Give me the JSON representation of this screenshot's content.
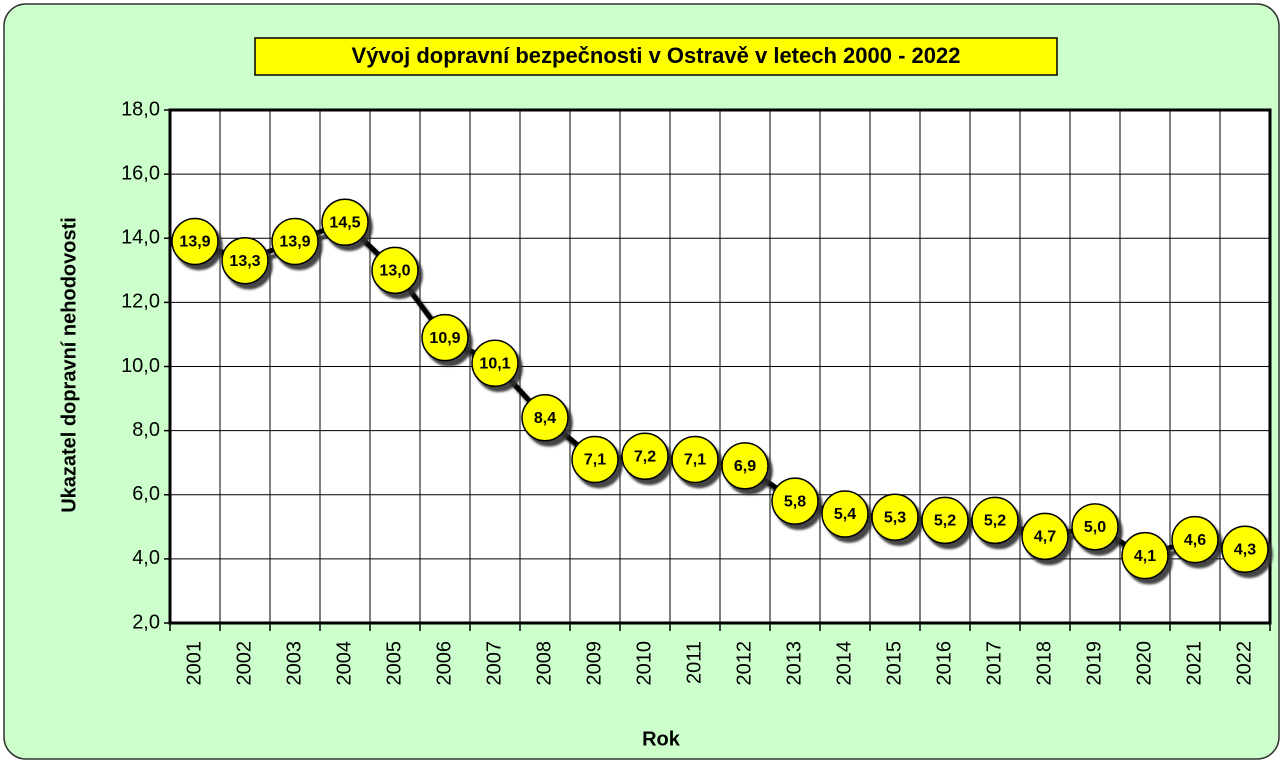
{
  "chart_data": {
    "type": "line",
    "title": "Vývoj dopravní bezpečnosti v Ostravě v letech 2000 - 2022",
    "x_label": "Rok",
    "y_label": "Ukazatel dopravní nehodovosti",
    "categories": [
      "2001",
      "2002",
      "2003",
      "2004",
      "2005",
      "2006",
      "2007",
      "2008",
      "2009",
      "2010",
      "2011",
      "2012",
      "2013",
      "2014",
      "2015",
      "2016",
      "2017",
      "2018",
      "2019",
      "2020",
      "2021",
      "2022"
    ],
    "values": [
      13.9,
      13.3,
      13.9,
      14.5,
      13.0,
      10.9,
      10.1,
      8.4,
      7.1,
      7.2,
      7.1,
      6.9,
      5.8,
      5.4,
      5.3,
      5.2,
      5.2,
      4.7,
      5.0,
      4.1,
      4.6,
      4.3
    ],
    "value_labels": [
      "13,9",
      "13,3",
      "13,9",
      "14,5",
      "13,0",
      "10,9",
      "10,1",
      "8,4",
      "7,1",
      "7,2",
      "7,1",
      "6,9",
      "5,8",
      "5,4",
      "5,3",
      "5,2",
      "5,2",
      "4,7",
      "5,0",
      "4,1",
      "4,6",
      "4,3"
    ],
    "color": "#000000",
    "marker_color": "#ffff00",
    "ylim": [
      2,
      18
    ],
    "yticks": [
      {
        "value": 2,
        "label": "2,0"
      },
      {
        "value": 4,
        "label": "4,0"
      },
      {
        "value": 6,
        "label": "6,0"
      },
      {
        "value": 8,
        "label": "8,0"
      },
      {
        "value": 10,
        "label": "10,0"
      },
      {
        "value": 12,
        "label": "12,0"
      },
      {
        "value": 14,
        "label": "14,0"
      },
      {
        "value": 16,
        "label": "16,0"
      },
      {
        "value": 18,
        "label": "18,0"
      }
    ],
    "grid": true
  }
}
